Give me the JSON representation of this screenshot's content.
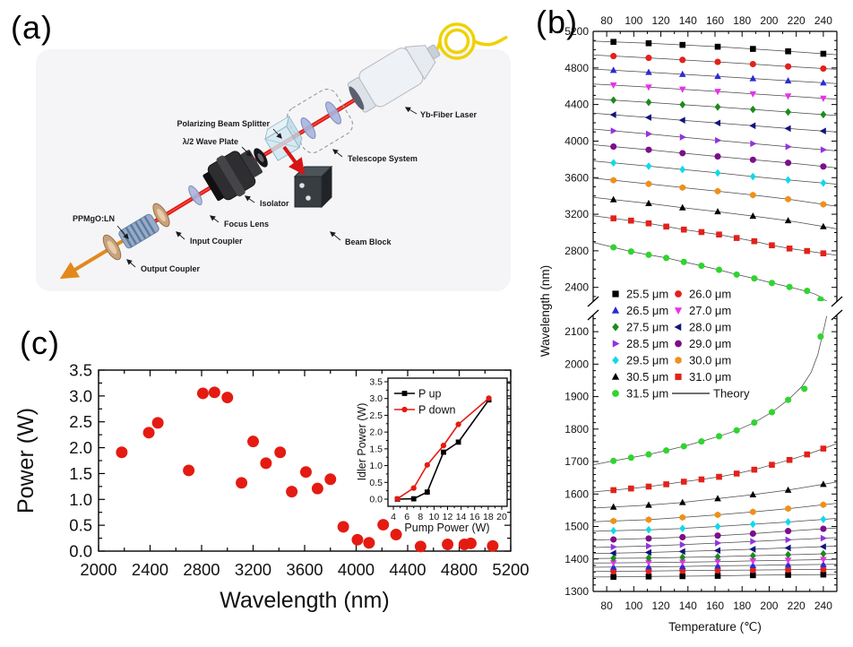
{
  "figure": {
    "panel_a_label": "(a)",
    "panel_b_label": "(b)",
    "panel_c_label": "(c)"
  },
  "panel_a": {
    "labels": {
      "pbs": "Polarizing Beam Splitter",
      "hwp": "λ/2 Wave Plate",
      "telescope": "Telescope System",
      "laser": "Yb-Fiber Laser",
      "isolator": "Isolator",
      "beam_block": "Beam Block",
      "focus_lens": "Focus Lens",
      "input_coupler": "Input Coupler",
      "output_coupler": "Output Coupler",
      "crystal": "PPMgO:LN"
    }
  },
  "chart_data": [
    {
      "id": "b-tuning",
      "type": "scatter",
      "title": "",
      "xlabel": "Temperature (℃)",
      "ylabel": "Wavelength (nm)",
      "xlim": [
        70,
        250
      ],
      "xticks": [
        80,
        100,
        120,
        140,
        160,
        180,
        200,
        220,
        240
      ],
      "y_axis_break": {
        "upper_range": [
          2250,
          5200
        ],
        "lower_range": [
          1300,
          2150
        ]
      },
      "yticks_upper": [
        2400,
        2800,
        3200,
        3600,
        4000,
        4400,
        4800,
        5200
      ],
      "yticks_lower": [
        1300,
        1400,
        1500,
        1600,
        1700,
        1800,
        1900,
        2000,
        2100
      ],
      "grid": false,
      "legend_position": "center-left",
      "theory_label": "Theory",
      "series": [
        {
          "name": "25.5 μm",
          "color": "#000000",
          "marker": "square",
          "idler": {
            "t": [
              85,
              111,
              136,
              162,
              188,
              214,
              240
            ],
            "wl": [
              5085,
              5070,
              5052,
              5032,
              5008,
              4982,
              4955
            ]
          },
          "signal": {
            "t": [
              85,
              111,
              136,
              162,
              188,
              214,
              240
            ],
            "wl": [
              1345,
              1346,
              1347,
              1348,
              1350,
              1351,
              1352
            ]
          }
        },
        {
          "name": "26.0 μm",
          "color": "#e3211b",
          "marker": "circle",
          "idler": {
            "t": [
              85,
              111,
              136,
              162,
              188,
              214,
              240
            ],
            "wl": [
              4930,
              4910,
              4888,
              4866,
              4842,
              4816,
              4793
            ]
          },
          "signal": {
            "t": [
              85,
              111,
              136,
              162,
              188,
              214,
              240
            ],
            "wl": [
              1362,
              1363,
              1364,
              1365,
              1366,
              1367,
              1368
            ]
          }
        },
        {
          "name": "26.5 μm",
          "color": "#2b2bd5",
          "marker": "triangleUp",
          "idler": {
            "t": [
              85,
              111,
              136,
              162,
              188,
              214,
              240
            ],
            "wl": [
              4775,
              4753,
              4731,
              4708,
              4684,
              4660,
              4637
            ]
          },
          "signal": {
            "t": [
              85,
              111,
              136,
              162,
              188,
              214,
              240
            ],
            "wl": [
              1375,
              1376,
              1377,
              1379,
              1380,
              1382,
              1383
            ]
          }
        },
        {
          "name": "27.0 μm",
          "color": "#e832e8",
          "marker": "triangleDown",
          "idler": {
            "t": [
              85,
              111,
              136,
              162,
              188,
              214,
              240
            ],
            "wl": [
              4612,
              4590,
              4567,
              4542,
              4516,
              4492,
              4468
            ]
          },
          "signal": {
            "t": [
              85,
              111,
              136,
              162,
              188,
              214,
              240
            ],
            "wl": [
              1388,
              1389,
              1390,
              1392,
              1394,
              1396,
              1398
            ]
          }
        },
        {
          "name": "27.5 μm",
          "color": "#1d8a1d",
          "marker": "diamond",
          "idler": {
            "t": [
              85,
              111,
              136,
              162,
              188,
              214,
              240
            ],
            "wl": [
              4448,
              4424,
              4399,
              4373,
              4346,
              4318,
              4290
            ]
          },
          "signal": {
            "t": [
              85,
              111,
              136,
              162,
              188,
              214,
              240
            ],
            "wl": [
              1402,
              1403,
              1405,
              1407,
              1410,
              1413,
              1416
            ]
          }
        },
        {
          "name": "28.0 μm",
          "color": "#14147c",
          "marker": "triangleLeft",
          "idler": {
            "t": [
              85,
              111,
              136,
              162,
              188,
              214,
              240
            ],
            "wl": [
              4288,
              4258,
              4228,
              4198,
              4168,
              4138,
              4110
            ]
          },
          "signal": {
            "t": [
              85,
              111,
              136,
              162,
              188,
              214,
              240
            ],
            "wl": [
              1418,
              1420,
              1423,
              1426,
              1430,
              1434,
              1438
            ]
          }
        },
        {
          "name": "28.5 μm",
          "color": "#9133e0",
          "marker": "triangleRight",
          "idler": {
            "t": [
              85,
              111,
              136,
              162,
              188,
              214,
              240
            ],
            "wl": [
              4112,
              4078,
              4043,
              4008,
              3972,
              3938,
              3905
            ]
          },
          "signal": {
            "t": [
              85,
              111,
              136,
              162,
              188,
              214,
              240
            ],
            "wl": [
              1437,
              1440,
              1444,
              1449,
              1454,
              1459,
              1464
            ]
          }
        },
        {
          "name": "29.0 μm",
          "color": "#7c0f8a",
          "marker": "circle",
          "idler": {
            "t": [
              85,
              111,
              136,
              162,
              188,
              214,
              240
            ],
            "wl": [
              3940,
              3905,
              3868,
              3832,
              3796,
              3762,
              3722
            ]
          },
          "signal": {
            "t": [
              85,
              111,
              136,
              162,
              188,
              214,
              240
            ],
            "wl": [
              1460,
              1463,
              1467,
              1472,
              1478,
              1486,
              1493
            ]
          }
        },
        {
          "name": "29.5 μm",
          "color": "#12d8e8",
          "marker": "diamond",
          "idler": {
            "t": [
              85,
              111,
              136,
              162,
              188,
              214,
              240
            ],
            "wl": [
              3762,
              3726,
              3690,
              3652,
              3612,
              3575,
              3542
            ]
          },
          "signal": {
            "t": [
              85,
              111,
              136,
              162,
              188,
              214,
              240
            ],
            "wl": [
              1487,
              1490,
              1494,
              1500,
              1507,
              1514,
              1522
            ]
          }
        },
        {
          "name": "30.0 μm",
          "color": "#ef9018",
          "marker": "hexagon",
          "idler": {
            "t": [
              85,
              111,
              136,
              162,
              188,
              214,
              240
            ],
            "wl": [
              3572,
              3532,
              3492,
              3452,
              3410,
              3365,
              3308
            ]
          },
          "signal": {
            "t": [
              85,
              111,
              136,
              162,
              188,
              214,
              240
            ],
            "wl": [
              1517,
              1521,
              1528,
              1536,
              1545,
              1555,
              1567
            ]
          }
        },
        {
          "name": "30.5 μm",
          "color": "#000000",
          "marker": "triangleUp",
          "idler": {
            "t": [
              85,
              111,
              136,
              162,
              188,
              214,
              240
            ],
            "wl": [
              3360,
              3318,
              3272,
              3228,
              3180,
              3130,
              3065
            ]
          },
          "signal": {
            "t": [
              85,
              111,
              136,
              162,
              188,
              214,
              240
            ],
            "wl": [
              1560,
              1566,
              1574,
              1586,
              1598,
              1612,
              1630
            ]
          }
        },
        {
          "name": "31.0 μm",
          "color": "#e3211b",
          "marker": "square",
          "idler": {
            "t": [
              85,
              98,
              111,
              124,
              137,
              150,
              163,
              176,
              189,
              202,
              215,
              228,
              240
            ],
            "wl": [
              3155,
              3130,
              3100,
              3065,
              3032,
              3005,
              2978,
              2940,
              2905,
              2860,
              2825,
              2798,
              2772
            ]
          },
          "signal": {
            "t": [
              85,
              98,
              111,
              124,
              137,
              150,
              163,
              176,
              189,
              202,
              215,
              228,
              240
            ],
            "wl": [
              1612,
              1617,
              1623,
              1630,
              1638,
              1645,
              1653,
              1663,
              1675,
              1690,
              1705,
              1722,
              1740
            ]
          }
        },
        {
          "name": "31.5 μm",
          "color": "#30d430",
          "marker": "circle",
          "idler": {
            "t": [
              85,
              98,
              111,
              124,
              137,
              150,
              163,
              176,
              189,
              202,
              215,
              228,
              238
            ],
            "wl": [
              2838,
              2792,
              2756,
              2722,
              2678,
              2636,
              2592,
              2540,
              2498,
              2448,
              2404,
              2362,
              2268
            ]
          },
          "idler_theory": [
            [
              70,
              2892
            ],
            [
              85,
              2838
            ],
            [
              98,
              2792
            ],
            [
              111,
              2756
            ],
            [
              124,
              2722
            ],
            [
              137,
              2678
            ],
            [
              150,
              2636
            ],
            [
              163,
              2592
            ],
            [
              176,
              2540
            ],
            [
              189,
              2498
            ],
            [
              202,
              2448
            ],
            [
              215,
              2404
            ],
            [
              228,
              2356
            ],
            [
              234,
              2325
            ],
            [
              238,
              2295
            ],
            [
              241,
              2262
            ],
            [
              242.5,
              2252
            ]
          ],
          "signal": {
            "t": [
              85,
              98,
              111,
              124,
              137,
              150,
              163,
              176,
              189,
              202,
              214,
              226,
              238
            ],
            "wl": [
              1702,
              1712,
              1722,
              1734,
              1747,
              1762,
              1778,
              1796,
              1820,
              1852,
              1890,
              1924,
              2085
            ]
          },
          "signal_theory": [
            [
              70,
              1690
            ],
            [
              85,
              1702
            ],
            [
              98,
              1712
            ],
            [
              111,
              1722
            ],
            [
              124,
              1734
            ],
            [
              137,
              1747
            ],
            [
              150,
              1762
            ],
            [
              163,
              1778
            ],
            [
              176,
              1796
            ],
            [
              189,
              1820
            ],
            [
              202,
              1852
            ],
            [
              214,
              1890
            ],
            [
              224,
              1930
            ],
            [
              231,
              1975
            ],
            [
              236,
              2030
            ],
            [
              239,
              2085
            ],
            [
              241,
              2120
            ],
            [
              242.5,
              2148
            ]
          ]
        }
      ]
    },
    {
      "id": "c-power",
      "type": "scatter",
      "xlabel": "Wavelength (nm)",
      "ylabel": "Power (W)",
      "xlim": [
        2000,
        5200
      ],
      "ylim": [
        0,
        3.5
      ],
      "xticks": [
        2000,
        2400,
        2800,
        3200,
        3600,
        4000,
        4400,
        4800,
        5200
      ],
      "yticks": [
        0,
        0.5,
        1,
        1.5,
        2,
        2.5,
        3,
        3.5
      ],
      "marker": "circle",
      "color": "#e41b12",
      "grid": false,
      "points": [
        [
          2180,
          1.91
        ],
        [
          2390,
          2.29
        ],
        [
          2460,
          2.48
        ],
        [
          2700,
          1.56
        ],
        [
          2810,
          3.05
        ],
        [
          2900,
          3.07
        ],
        [
          3000,
          2.97
        ],
        [
          3110,
          1.32
        ],
        [
          3200,
          2.12
        ],
        [
          3300,
          1.7
        ],
        [
          3410,
          1.91
        ],
        [
          3500,
          1.15
        ],
        [
          3610,
          1.53
        ],
        [
          3700,
          1.21
        ],
        [
          3800,
          1.39
        ],
        [
          3900,
          0.47
        ],
        [
          4010,
          0.22
        ],
        [
          4100,
          0.16
        ],
        [
          4210,
          0.51
        ],
        [
          4310,
          0.32
        ],
        [
          4500,
          0.09
        ],
        [
          4710,
          0.13
        ],
        [
          4840,
          0.13
        ],
        [
          4890,
          0.15
        ],
        [
          5060,
          0.1
        ]
      ]
    },
    {
      "id": "c-inset",
      "type": "line",
      "xlabel": "Pump Power (W)",
      "ylabel": "Idler Power (W)",
      "xlim": [
        3.2,
        20.8
      ],
      "ylim": [
        0,
        3.5
      ],
      "xticks": [
        4,
        6,
        8,
        10,
        12,
        14,
        16,
        18,
        20
      ],
      "yticks": [
        0,
        0.5,
        1,
        1.5,
        2,
        2.5,
        3,
        3.5
      ],
      "legend_position": "top-left",
      "series": [
        {
          "name": "P up",
          "color": "#000000",
          "marker": "square",
          "x": [
            4.6,
            7,
            9,
            11.4,
            13.6,
            18.1
          ],
          "y": [
            0,
            0.01,
            0.21,
            1.4,
            1.7,
            2.96
          ]
        },
        {
          "name": "P down",
          "color": "#e41b12",
          "marker": "circle",
          "x": [
            4.6,
            7,
            9,
            11.4,
            13.6,
            18.1
          ],
          "y": [
            0.01,
            0.33,
            1.02,
            1.6,
            2.23,
            3.01
          ]
        }
      ]
    }
  ]
}
